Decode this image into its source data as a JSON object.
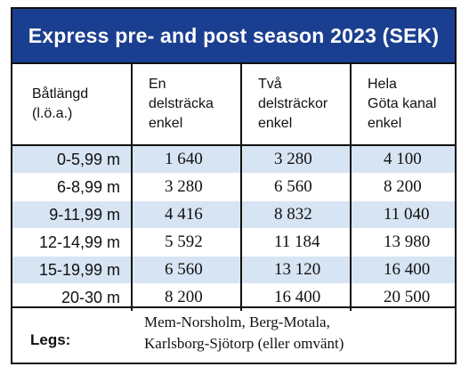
{
  "title": "Express pre- and post season 2023 (SEK)",
  "headers": [
    "Båtlängd\n(l.ö.a.)",
    "En\ndelsträcka\nenkel",
    "Två\ndelsträckor\nenkel",
    "Hela\nGöta kanal\nenkel"
  ],
  "rows": [
    {
      "length": "0-5,99 m",
      "one": "1 640",
      "two": "3 280",
      "full": "4 100"
    },
    {
      "length": "6-8,99 m",
      "one": "3 280",
      "two": "6 560",
      "full": "8 200"
    },
    {
      "length": "9-11,99 m",
      "one": "4 416",
      "two": "8 832",
      "full": "11 040"
    },
    {
      "length": "12-14,99 m",
      "one": "5 592",
      "two": "11 184",
      "full": "13 980"
    },
    {
      "length": "15-19,99 m",
      "one": "6 560",
      "two": "13 120",
      "full": "16 400"
    },
    {
      "length": "20-30 m",
      "one": "8 200",
      "two": "16 400",
      "full": "20 500"
    }
  ],
  "legs": {
    "label": "Legs:",
    "line1": "Mem-Norsholm, Berg-Motala,",
    "line2": "Karlsborg-Sjötorp (eller omvänt)"
  },
  "colors": {
    "header_bg": "#1b3f90",
    "row_shade": "#d7e4f3",
    "border": "#111111"
  }
}
